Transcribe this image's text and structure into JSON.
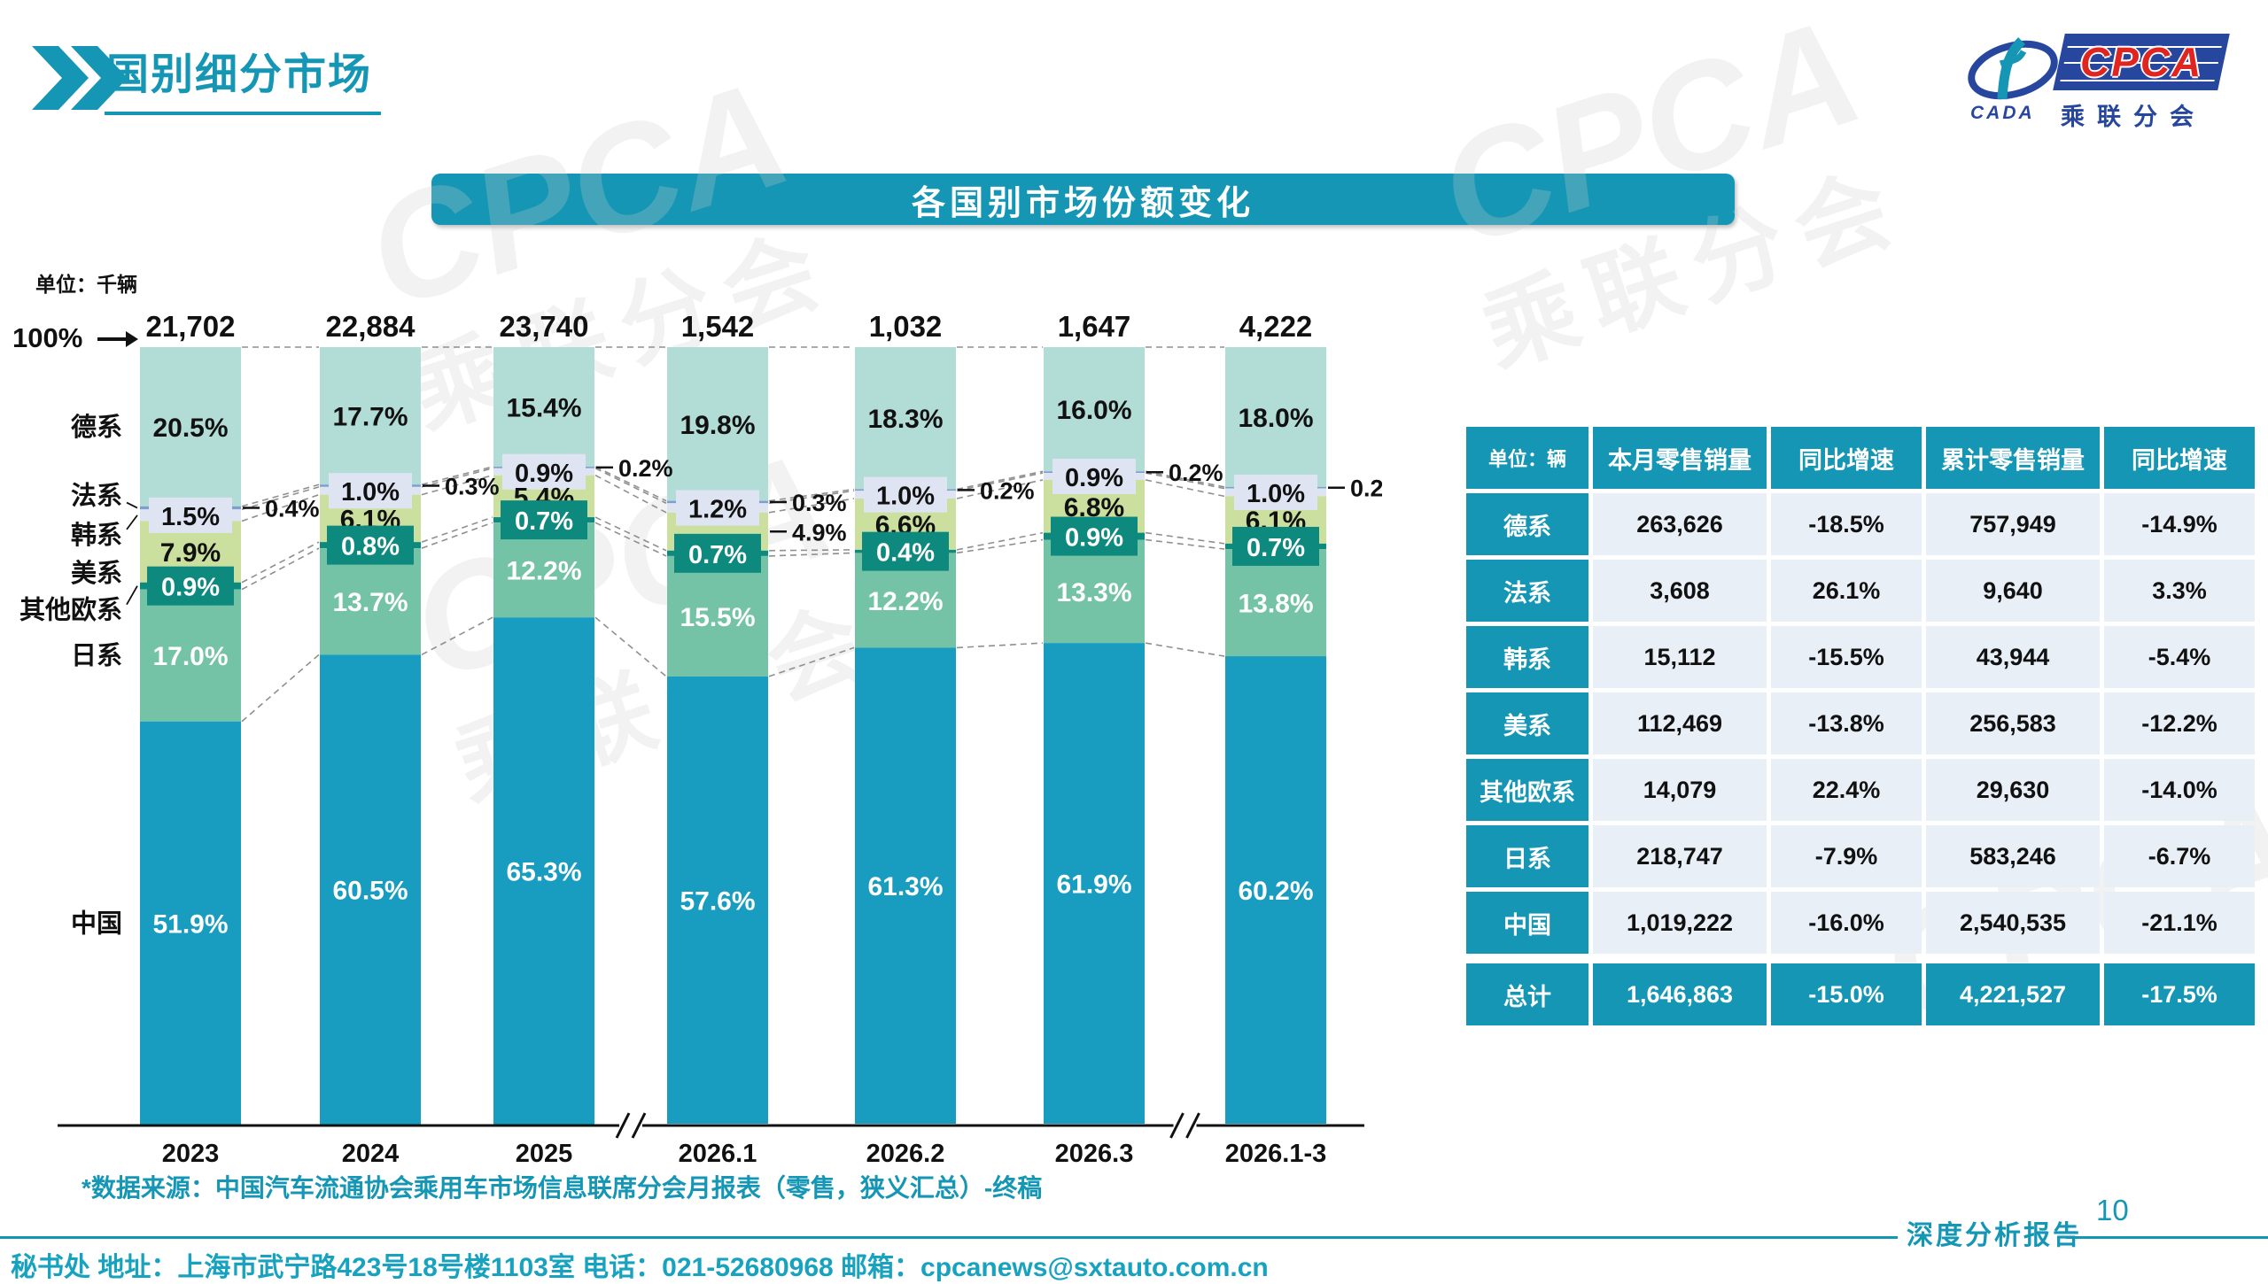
{
  "page": {
    "title": "国别细分市场",
    "banner_title": "各国别市场份额变化",
    "unit_label": "单位：千辆",
    "axis_100_label": "100%",
    "source_note": "*数据来源：中国汽车流通协会乘用车市场信息联席分会月报表（零售，狭义汇总）-终稿",
    "footer_contact": "秘书处  地址：上海市武宁路423号18号楼1103室 电话：021-52680968  邮箱：cpcanews@sxtauto.com.cn",
    "footer_report_label": "深度分析报告",
    "page_number": "10"
  },
  "logo": {
    "cpca": "CPCA",
    "cada": "CADA",
    "subtitle": "乘联分会"
  },
  "colors": {
    "accent": "#1496b4",
    "logo_navy": "#27479e",
    "logo_red": "#e02520",
    "table_cell_bg": "#e9eff7",
    "connector_gray": "#8f8f8f"
  },
  "chart_data": {
    "type": "bar",
    "subtype": "stacked-100-percent",
    "title": "各国别市场份额变化",
    "unit": "千辆",
    "categories": [
      "2023",
      "2024",
      "2025",
      "2026.1",
      "2026.2",
      "2026.3",
      "2026.1-3"
    ],
    "totals": [
      "21,702",
      "22,884",
      "23,740",
      "1,542",
      "1,032",
      "1,647",
      "4,222"
    ],
    "ylim": [
      0,
      100
    ],
    "grid": false,
    "legend_position": "left-of-first-bar",
    "axis_breaks_after": [
      2,
      5
    ],
    "series": [
      {
        "name": "德系",
        "color": "#b2dcd6",
        "label_mode": "inside-dark",
        "values": [
          20.5,
          17.7,
          15.4,
          19.8,
          18.3,
          16.0,
          18.0
        ]
      },
      {
        "name": "法系",
        "color": "#7e9ecd",
        "label_mode": "callout",
        "values": [
          0.4,
          0.3,
          0.2,
          0.3,
          0.2,
          0.2,
          0.2
        ]
      },
      {
        "name": "韩系",
        "color": "#dfe4f2",
        "label_mode": "box-light",
        "values": [
          1.5,
          1.0,
          0.9,
          1.2,
          1.0,
          0.9,
          1.0
        ]
      },
      {
        "name": "美系",
        "color": "#cbdf9e",
        "label_mode": "inside-dark",
        "callout_bars": [
          3
        ],
        "values": [
          7.9,
          6.1,
          5.4,
          4.9,
          6.6,
          6.8,
          6.1
        ]
      },
      {
        "name": "其他欧系",
        "color": "#0e897d",
        "label_mode": "box-dark",
        "values": [
          0.9,
          0.8,
          0.7,
          0.7,
          0.4,
          0.9,
          0.7
        ]
      },
      {
        "name": "日系",
        "color": "#74c3a6",
        "label_mode": "inside-white",
        "values": [
          17.0,
          13.7,
          12.2,
          15.5,
          12.2,
          13.3,
          13.8
        ]
      },
      {
        "name": "中国",
        "color": "#189dc0",
        "label_mode": "inside-white",
        "values": [
          51.9,
          60.5,
          65.3,
          57.6,
          61.3,
          61.9,
          60.2
        ]
      }
    ]
  },
  "table": {
    "unit_header": "单位：辆",
    "columns": [
      "本月零售销量",
      "同比增速",
      "累计零售销量",
      "同比增速"
    ],
    "rows": [
      {
        "label": "德系",
        "cells": [
          "263,626",
          "-18.5%",
          "757,949",
          "-14.9%"
        ]
      },
      {
        "label": "法系",
        "cells": [
          "3,608",
          "26.1%",
          "9,640",
          "3.3%"
        ]
      },
      {
        "label": "韩系",
        "cells": [
          "15,112",
          "-15.5%",
          "43,944",
          "-5.4%"
        ]
      },
      {
        "label": "美系",
        "cells": [
          "112,469",
          "-13.8%",
          "256,583",
          "-12.2%"
        ]
      },
      {
        "label": "其他欧系",
        "cells": [
          "14,079",
          "22.4%",
          "29,630",
          "-14.0%"
        ]
      },
      {
        "label": "日系",
        "cells": [
          "218,747",
          "-7.9%",
          "583,246",
          "-6.7%"
        ]
      },
      {
        "label": "中国",
        "cells": [
          "1,019,222",
          "-16.0%",
          "2,540,535",
          "-21.1%"
        ]
      }
    ],
    "total_row": {
      "label": "总计",
      "cells": [
        "1,646,863",
        "-15.0%",
        "4,221,527",
        "-17.5%"
      ]
    }
  }
}
